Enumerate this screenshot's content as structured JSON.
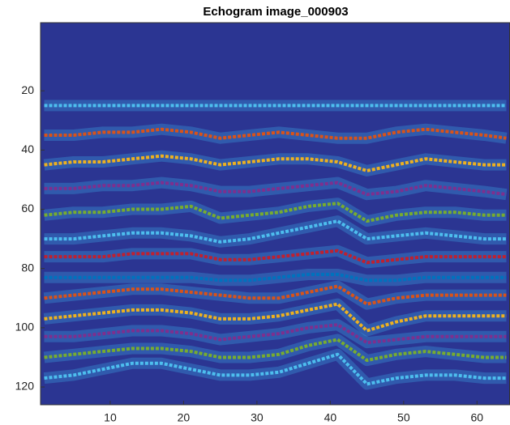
{
  "chart_data": {
    "type": "layers",
    "title": "Echogram image_000903",
    "x": [
      1,
      5,
      9,
      13,
      17,
      21,
      25,
      29,
      33,
      37,
      41,
      45,
      49,
      53,
      57,
      61,
      64
    ],
    "xlim": [
      0.5,
      64.5
    ],
    "xticks": [
      10,
      20,
      30,
      40,
      50,
      60
    ],
    "ylim": [
      -3,
      126
    ],
    "yticks": [
      20,
      40,
      60,
      80,
      100,
      120
    ],
    "y_reversed": true,
    "background": "#2b3592",
    "series": [
      {
        "color": "#4dbeee",
        "values": [
          25,
          25,
          25,
          25,
          25,
          25,
          25,
          25,
          25,
          25,
          25,
          25,
          25,
          25,
          25,
          25,
          25
        ]
      },
      {
        "color": "#d95319",
        "values": [
          35,
          35,
          34,
          34,
          33,
          34,
          36,
          35,
          34,
          35,
          36,
          36,
          34,
          33,
          34,
          35,
          36
        ]
      },
      {
        "color": "#edb120",
        "values": [
          45,
          44,
          44,
          43,
          42,
          43,
          45,
          44,
          43,
          43,
          44,
          47,
          45,
          43,
          44,
          45,
          45
        ]
      },
      {
        "color": "#7e2f8e",
        "values": [
          53,
          53,
          52,
          52,
          51,
          52,
          54,
          54,
          53,
          52,
          51,
          55,
          54,
          52,
          53,
          54,
          55
        ]
      },
      {
        "color": "#77ac30",
        "values": [
          62,
          61,
          61,
          60,
          60,
          59,
          63,
          62,
          61,
          59,
          58,
          64,
          62,
          61,
          61,
          62,
          62
        ]
      },
      {
        "color": "#4dbeee",
        "values": [
          70,
          70,
          69,
          68,
          68,
          69,
          71,
          70,
          68,
          66,
          64,
          70,
          69,
          68,
          69,
          70,
          70
        ]
      },
      {
        "color": "#c0202f",
        "values": [
          76,
          76,
          76,
          75,
          75,
          75,
          77,
          77,
          76,
          75,
          74,
          78,
          77,
          76,
          76,
          76,
          76
        ]
      },
      {
        "color": "#0072bd",
        "values": [
          83,
          83,
          83,
          83,
          83,
          83,
          84,
          84,
          83,
          82,
          82,
          84,
          84,
          83,
          83,
          83,
          83
        ]
      },
      {
        "color": "#d95319",
        "values": [
          90,
          89,
          88,
          87,
          87,
          88,
          89,
          90,
          90,
          88,
          86,
          92,
          90,
          89,
          89,
          89,
          89
        ]
      },
      {
        "color": "#edb120",
        "values": [
          97,
          96,
          95,
          94,
          94,
          95,
          97,
          97,
          96,
          94,
          92,
          101,
          98,
          96,
          96,
          96,
          96
        ]
      },
      {
        "color": "#7e2f8e",
        "values": [
          103,
          103,
          102,
          101,
          101,
          102,
          104,
          103,
          102,
          100,
          99,
          105,
          104,
          103,
          103,
          103,
          103
        ]
      },
      {
        "color": "#77ac30",
        "values": [
          110,
          109,
          108,
          107,
          107,
          108,
          110,
          110,
          109,
          106,
          104,
          111,
          109,
          108,
          109,
          110,
          110
        ]
      },
      {
        "color": "#4dbeee",
        "values": [
          117,
          116,
          114,
          112,
          112,
          114,
          116,
          116,
          115,
          112,
          109,
          119,
          117,
          116,
          116,
          117,
          117
        ]
      }
    ]
  }
}
